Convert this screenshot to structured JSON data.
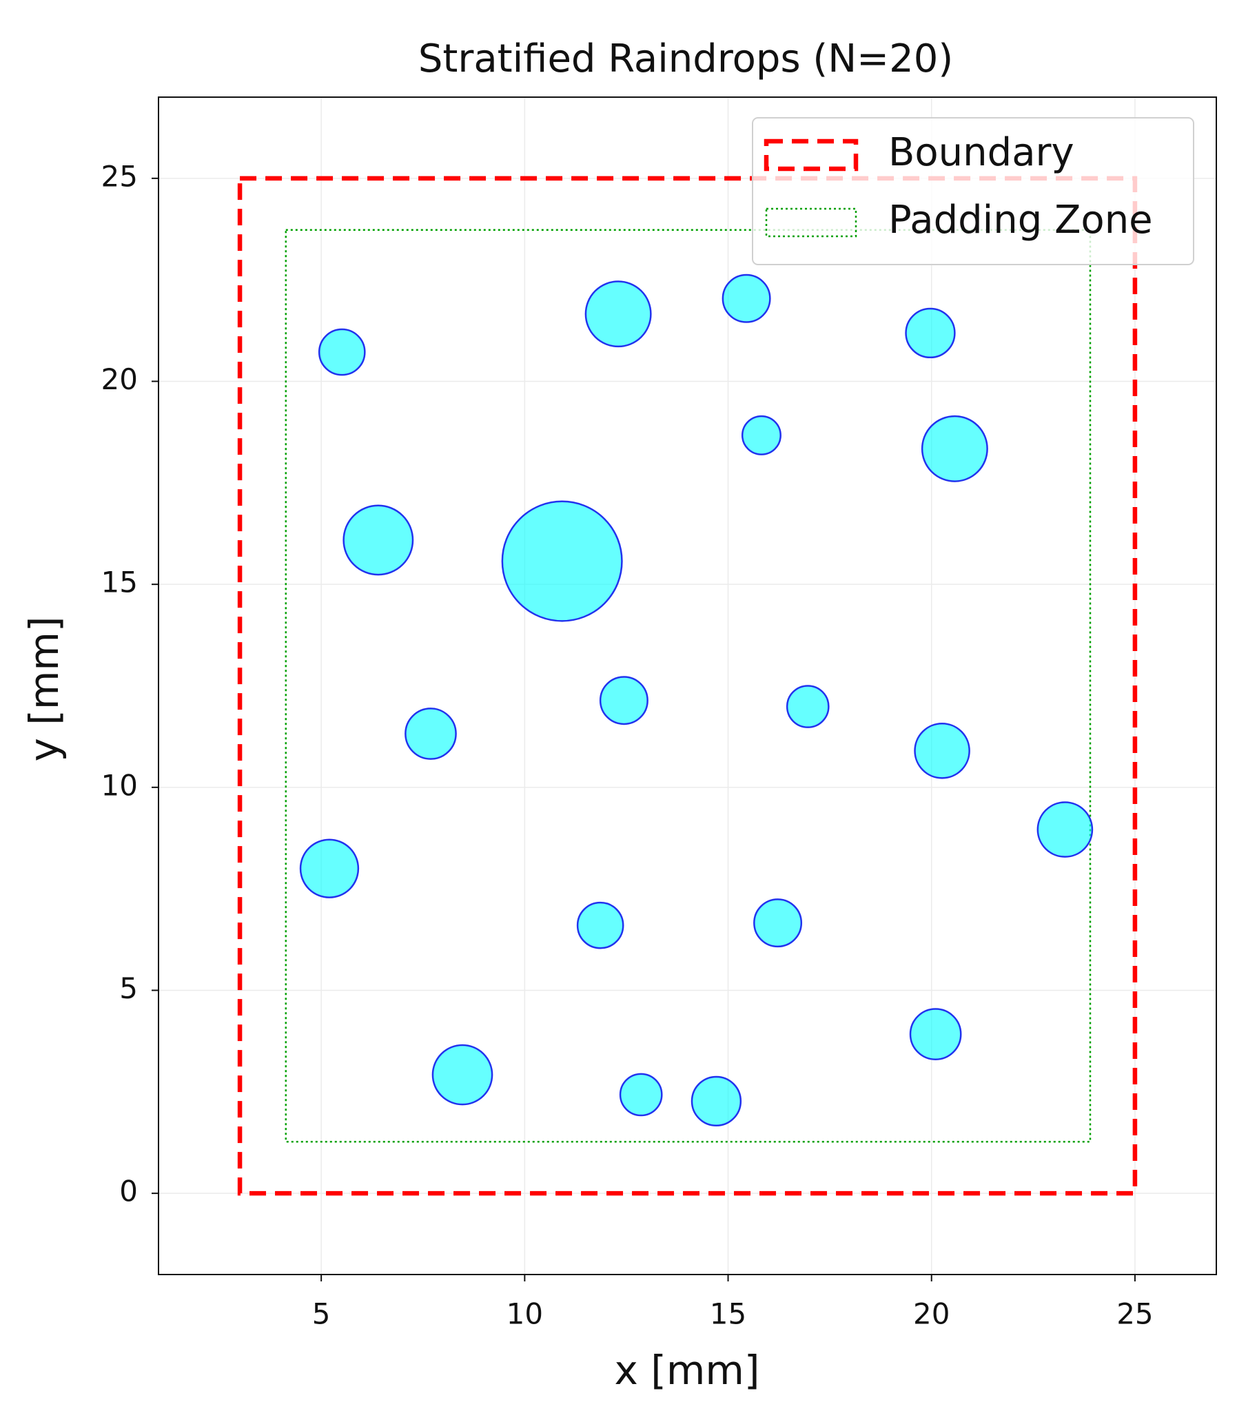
{
  "chart_data": {
    "type": "scatter",
    "title": "Stratified Raindrops (N=20)",
    "x_label": "x [mm]",
    "y_label": "y [mm]",
    "xlim": [
      1,
      27
    ],
    "ylim": [
      -2,
      27
    ],
    "xticks": [
      5,
      10,
      15,
      20,
      25
    ],
    "yticks": [
      0,
      5,
      10,
      15,
      20,
      25
    ],
    "grid": true,
    "legend": "upper right",
    "boundary": {
      "name": "Boundary",
      "color": "#ff0000",
      "x": [
        3,
        25
      ],
      "y": [
        0,
        25
      ]
    },
    "padding_zone": {
      "name": "Padding Zone",
      "color": "#00a000",
      "x": [
        4.13,
        23.9
      ],
      "y": [
        1.27,
        23.73
      ]
    },
    "drops": {
      "color": "#00ffff",
      "edgecolor": "#2233ee",
      "alpha": 0.6,
      "x": [
        5.51,
        12.3,
        15.45,
        19.97,
        15.82,
        20.57,
        6.4,
        10.92,
        12.44,
        16.96,
        7.69,
        20.26,
        23.28,
        5.2,
        11.86,
        16.22,
        20.1,
        8.47,
        12.86,
        14.71
      ],
      "y": [
        20.72,
        21.66,
        22.04,
        21.19,
        18.67,
        18.34,
        16.09,
        15.57,
        12.14,
        11.99,
        11.32,
        10.9,
        8.96,
        8.0,
        6.6,
        6.66,
        3.92,
        2.92,
        2.43,
        2.27
      ],
      "radius": [
        0.56,
        0.8,
        0.58,
        0.6,
        0.47,
        0.8,
        0.85,
        1.47,
        0.58,
        0.51,
        0.62,
        0.67,
        0.67,
        0.71,
        0.56,
        0.58,
        0.62,
        0.73,
        0.51,
        0.6
      ]
    }
  }
}
